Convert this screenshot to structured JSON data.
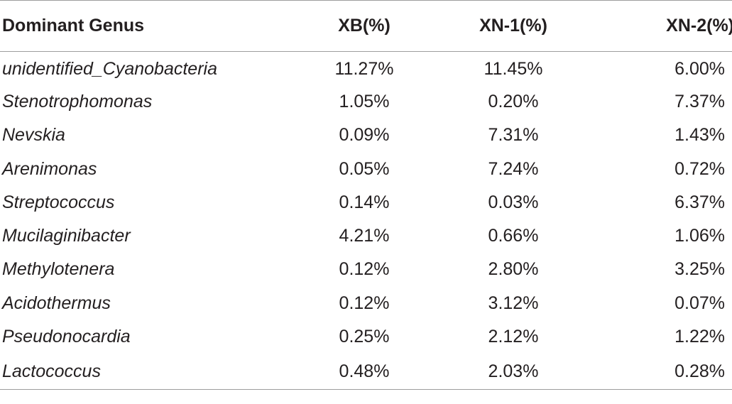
{
  "table": {
    "headers": [
      "Dominant Genus",
      "XB(%)",
      "XN-1(%)",
      "XN-2(%)"
    ],
    "rows": [
      {
        "genus": "unidentified_Cyanobacteria",
        "xb": "11.27%",
        "xn1": "11.45%",
        "xn2": "6.00%"
      },
      {
        "genus": "Stenotrophomonas",
        "xb": "1.05%",
        "xn1": "0.20%",
        "xn2": "7.37%"
      },
      {
        "genus": "Nevskia",
        "xb": "0.09%",
        "xn1": "7.31%",
        "xn2": "1.43%"
      },
      {
        "genus": "Arenimonas",
        "xb": "0.05%",
        "xn1": "7.24%",
        "xn2": "0.72%"
      },
      {
        "genus": "Streptococcus",
        "xb": "0.14%",
        "xn1": "0.03%",
        "xn2": "6.37%"
      },
      {
        "genus": "Mucilaginibacter",
        "xb": "4.21%",
        "xn1": "0.66%",
        "xn2": "1.06%"
      },
      {
        "genus": "Methylotenera",
        "xb": "0.12%",
        "xn1": "2.80%",
        "xn2": "3.25%"
      },
      {
        "genus": "Acidothermus",
        "xb": "0.12%",
        "xn1": "3.12%",
        "xn2": "0.07%"
      },
      {
        "genus": "Pseudonocardia",
        "xb": "0.25%",
        "xn1": "2.12%",
        "xn2": "1.22%"
      },
      {
        "genus": "Lactococcus",
        "xb": "0.48%",
        "xn1": "2.03%",
        "xn2": "0.28%"
      }
    ]
  }
}
